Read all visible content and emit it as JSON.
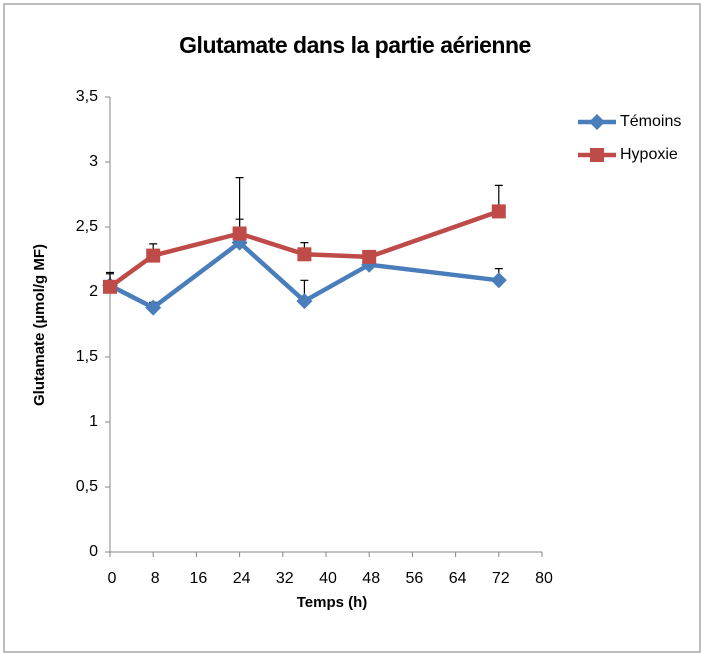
{
  "chart_data": {
    "type": "line",
    "title": "Glutamate dans la partie aérienne",
    "xlabel": "Temps (h)",
    "ylabel": "Glutamate (µmol/g MF)",
    "x": [
      0,
      8,
      24,
      36,
      48,
      72
    ],
    "series": [
      {
        "name": "Témoins",
        "color": "#4a7ebb",
        "marker": "diamond",
        "values": [
          2.05,
          1.88,
          2.38,
          1.93,
          2.21,
          2.09
        ],
        "errors": [
          0.1,
          0.04,
          0.18,
          0.16,
          0.02,
          0.09
        ]
      },
      {
        "name": "Hypoxie",
        "color": "#be4b48",
        "marker": "square",
        "values": [
          2.04,
          2.28,
          2.45,
          2.29,
          2.27,
          2.62
        ],
        "errors": [
          0.1,
          0.09,
          0.43,
          0.09,
          0.01,
          0.2
        ]
      }
    ],
    "xlim": [
      0,
      80
    ],
    "xticks": [
      0,
      8,
      16,
      24,
      32,
      40,
      48,
      56,
      64,
      72,
      80
    ],
    "ylim": [
      0,
      3.5
    ],
    "yticks": [
      0,
      {
        "value": 0.5,
        "label": "0,5"
      },
      1,
      {
        "value": 1.5,
        "label": "1,5"
      },
      2,
      {
        "value": 2.5,
        "label": "2,5"
      },
      3,
      {
        "value": 3.5,
        "label": "3,5"
      }
    ],
    "grid": false,
    "legend": "right"
  }
}
